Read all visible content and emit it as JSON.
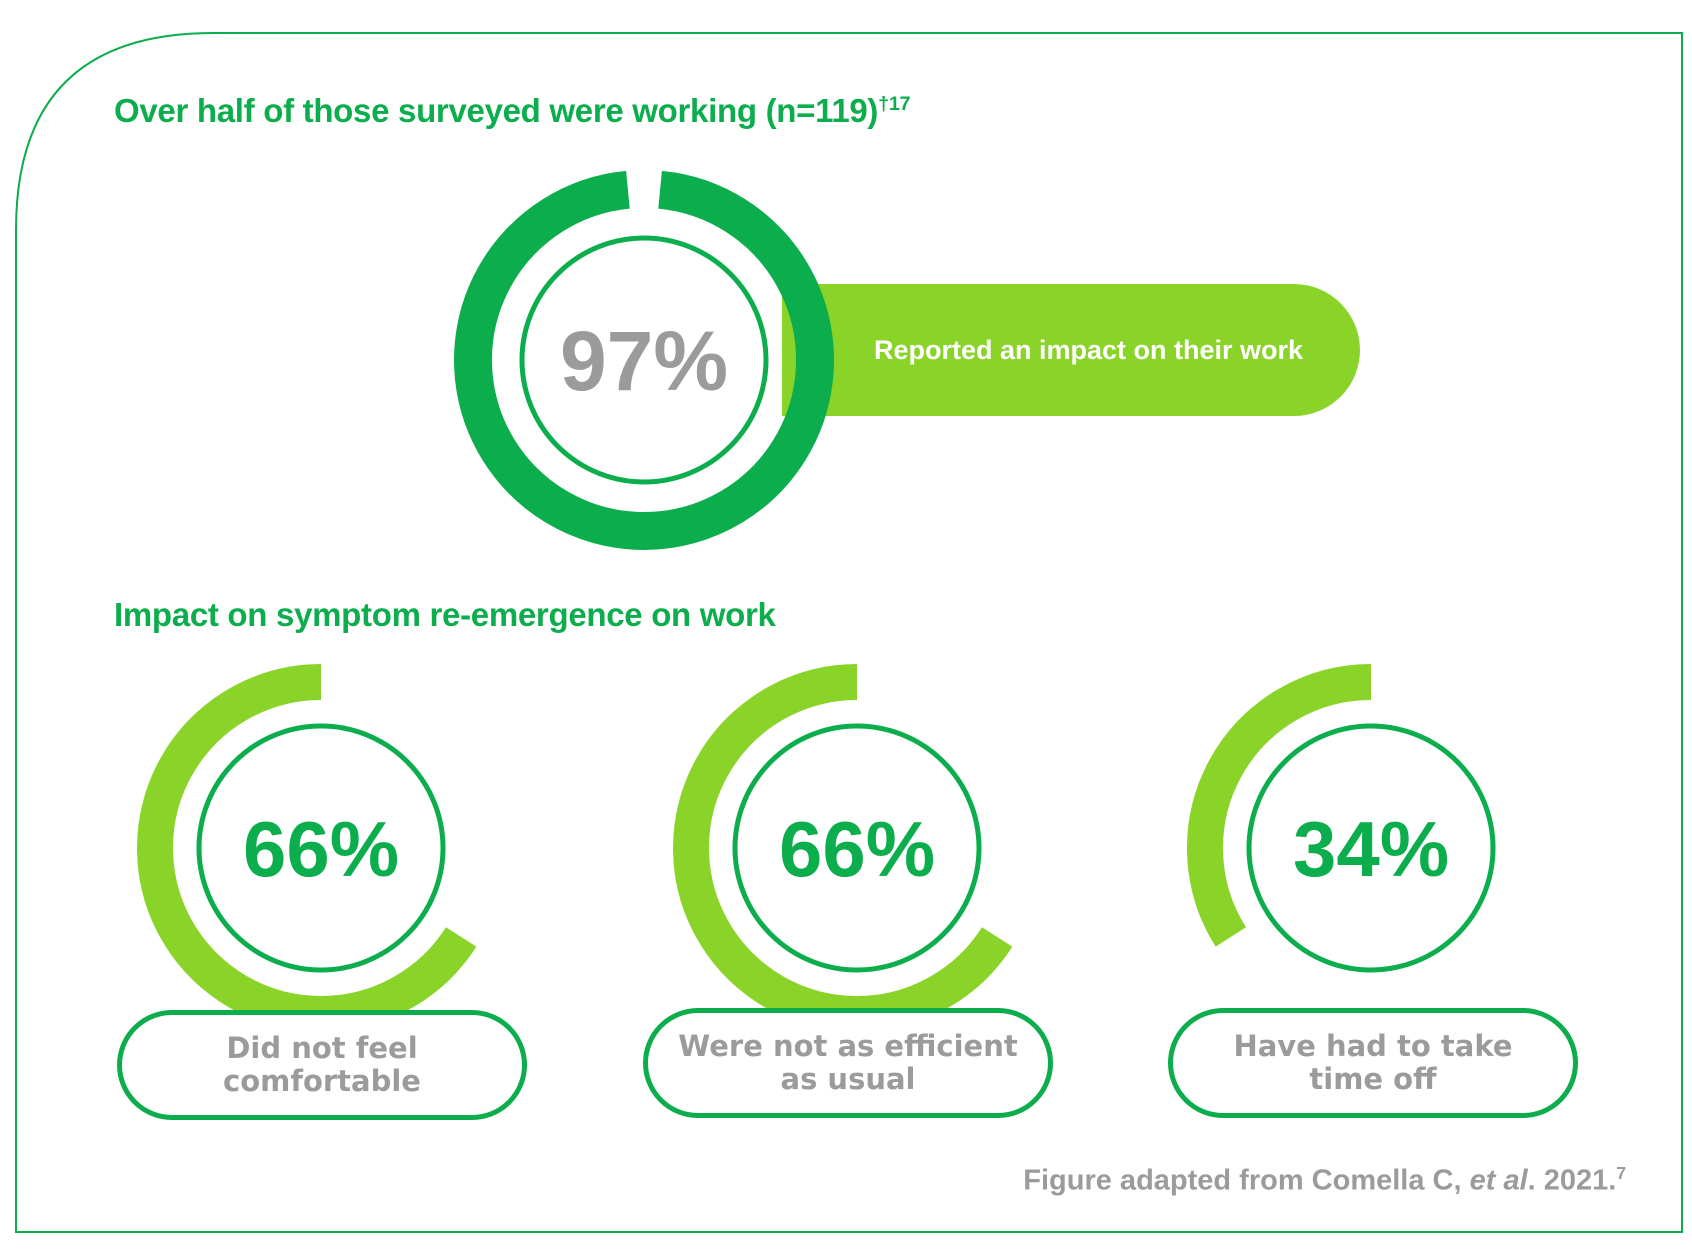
{
  "colors": {
    "dark_green": "#0cad4c",
    "light_green": "#8ad42a",
    "gray_text": "#9b9b9b",
    "pill_text": "#ffffff"
  },
  "chart_data": [
    {
      "type": "donut",
      "title": "Over half of those surveyed were working (n=119)",
      "title_superscript": "†17",
      "value": 97,
      "value_label": "97%",
      "label": "Reported an impact on their work",
      "color": "#0cad4c"
    },
    {
      "type": "donut",
      "group_title": "Impact on symptom re-emergence on work",
      "items": [
        {
          "value": 66,
          "value_label": "66%",
          "label": "Did not feel comfortable",
          "color": "#8ad42a"
        },
        {
          "value": 66,
          "value_label": "66%",
          "label": "Were not as efficient as usual",
          "color": "#8ad42a"
        },
        {
          "value": 34,
          "value_label": "34%",
          "label": "Have had to take time off",
          "color": "#8ad42a"
        }
      ]
    }
  ],
  "source": {
    "prefix": "Figure adapted from Comella C, ",
    "italic": "et al",
    "suffix": ". 2021.",
    "superscript": "7"
  }
}
